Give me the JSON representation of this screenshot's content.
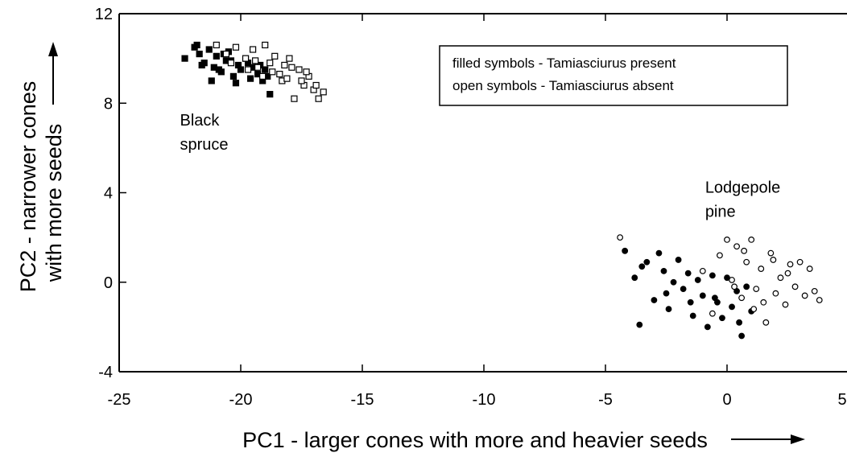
{
  "chart_data": {
    "type": "scatter",
    "xlabel": "PC1 - larger cones with more and heavier seeds",
    "ylabel": [
      "PC2 - narrower cones",
      "with more seeds"
    ],
    "xlim": [
      -25,
      5
    ],
    "xticks": [
      -25,
      -20,
      -15,
      -10,
      -5,
      0,
      5
    ],
    "ylim": [
      -4,
      12
    ],
    "yticks": [
      -4,
      0,
      4,
      8,
      12
    ],
    "legend": [
      "filled symbols - Tamiasciurus present",
      "open symbols - Tamiasciurus absent"
    ],
    "annotations": [
      {
        "lines": [
          "Black",
          "spruce"
        ],
        "x": -22.5,
        "y": 7
      },
      {
        "lines": [
          "Lodgepole",
          "pine"
        ],
        "x": -0.9,
        "y": 4
      }
    ],
    "series": [
      {
        "marker": "square",
        "filled": true,
        "color": "#000000",
        "x": [
          -22.3,
          -21.9,
          -21.7,
          -21.5,
          -21.3,
          -21.1,
          -21.0,
          -20.8,
          -20.6,
          -20.5,
          -20.3,
          -20.1,
          -20.0,
          -19.8,
          -19.6,
          -19.5,
          -19.3,
          -19.1,
          -19.0,
          -18.8,
          -21.6,
          -21.2,
          -20.7,
          -20.2,
          -19.7,
          -19.2,
          -18.9,
          -21.8,
          -20.9,
          -20.4
        ],
        "values": [
          10.0,
          10.5,
          10.2,
          9.8,
          10.4,
          9.6,
          10.1,
          9.4,
          9.9,
          10.3,
          9.2,
          9.7,
          9.5,
          10.0,
          9.1,
          9.6,
          9.3,
          9.0,
          9.5,
          8.4,
          9.7,
          9.0,
          10.2,
          8.9,
          9.8,
          9.7,
          9.2,
          10.6,
          9.5,
          9.9
        ]
      },
      {
        "marker": "square",
        "filled": false,
        "color": "#000000",
        "x": [
          -21.0,
          -20.6,
          -20.2,
          -19.8,
          -19.5,
          -19.3,
          -19.0,
          -18.8,
          -18.6,
          -18.4,
          -18.2,
          -18.0,
          -17.8,
          -17.6,
          -17.4,
          -17.2,
          -17.0,
          -16.8,
          -16.6,
          -19.1,
          -18.7,
          -18.3,
          -17.9,
          -17.5,
          -19.7,
          -20.4,
          -17.3,
          -16.9,
          -18.1,
          -19.4
        ],
        "values": [
          10.6,
          10.2,
          10.5,
          10.0,
          10.4,
          9.6,
          10.6,
          9.8,
          10.1,
          9.3,
          9.7,
          10.0,
          8.2,
          9.5,
          8.8,
          9.2,
          8.6,
          8.2,
          8.5,
          9.2,
          9.4,
          9.0,
          9.6,
          9.0,
          9.5,
          9.8,
          9.4,
          8.8,
          9.1,
          9.9
        ]
      },
      {
        "marker": "circle",
        "filled": true,
        "color": "#000000",
        "x": [
          -4.2,
          -3.8,
          -3.6,
          -3.3,
          -3.0,
          -2.8,
          -2.6,
          -2.4,
          -2.2,
          -2.0,
          -1.8,
          -1.6,
          -1.4,
          -1.2,
          -1.0,
          -0.8,
          -0.6,
          -0.4,
          -0.2,
          0.0,
          0.2,
          0.4,
          0.6,
          0.8,
          1.0,
          -3.5,
          -2.5,
          -1.5,
          -0.5,
          0.5
        ],
        "values": [
          1.4,
          0.2,
          -1.9,
          0.9,
          -0.8,
          1.3,
          0.5,
          -1.2,
          0.0,
          1.0,
          -0.3,
          0.4,
          -1.5,
          0.1,
          -0.6,
          -2.0,
          0.3,
          -0.9,
          -1.6,
          0.2,
          -1.1,
          -0.4,
          -2.4,
          -0.2,
          -1.3,
          0.7,
          -0.5,
          -0.9,
          -0.7,
          -1.8
        ]
      },
      {
        "marker": "circle",
        "filled": false,
        "color": "#000000",
        "x": [
          -4.4,
          -1.0,
          -0.6,
          -0.3,
          0.0,
          0.2,
          0.4,
          0.6,
          0.8,
          1.0,
          1.2,
          1.4,
          1.6,
          1.8,
          2.0,
          2.2,
          2.4,
          2.6,
          2.8,
          3.0,
          3.2,
          3.4,
          3.6,
          3.8,
          1.1,
          0.7,
          1.5,
          2.5,
          0.3,
          1.9
        ],
        "values": [
          2.0,
          0.5,
          -1.4,
          1.2,
          1.9,
          0.1,
          1.6,
          -0.7,
          0.9,
          1.9,
          -0.3,
          0.6,
          -1.8,
          1.3,
          -0.5,
          0.2,
          -1.0,
          0.8,
          -0.2,
          0.9,
          -0.6,
          0.6,
          -0.4,
          -0.8,
          -1.2,
          1.4,
          -0.9,
          0.4,
          -0.2,
          1.0
        ]
      }
    ]
  }
}
